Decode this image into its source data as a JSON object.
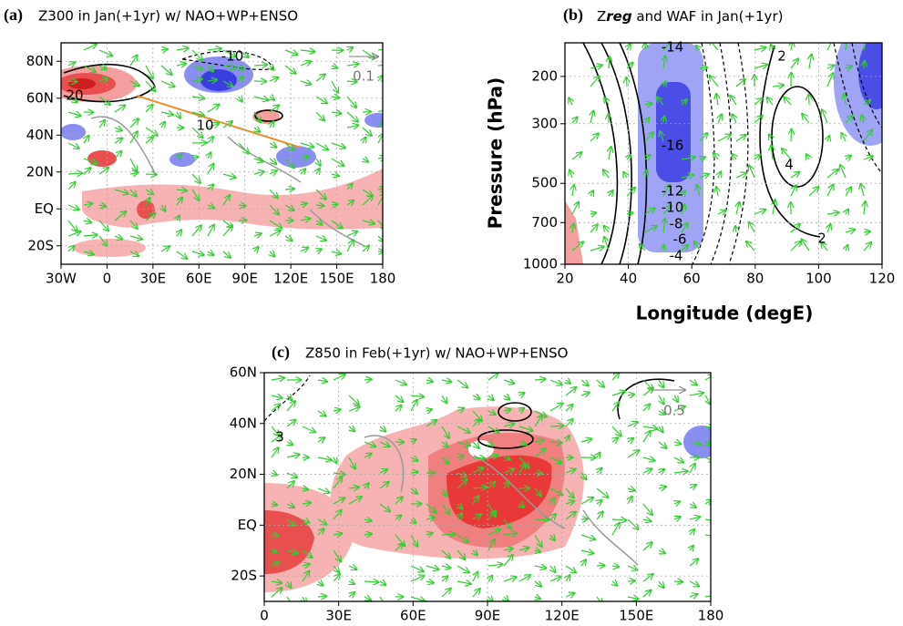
{
  "chart_data": [
    {
      "type": "map",
      "label": "(a)",
      "title": "Z300 in Jan(+1yr) w/ NAO+WP+ENSO",
      "xlim": [
        -30,
        180
      ],
      "xticks": [
        {
          "value": -30,
          "label": "30W"
        },
        0,
        {
          "value": 30,
          "label": "30E"
        },
        {
          "value": 60,
          "label": "60E"
        },
        {
          "value": 90,
          "label": "90E"
        },
        {
          "value": 120,
          "label": "120E"
        },
        {
          "value": 150,
          "label": "150E"
        },
        180
      ],
      "ylim": [
        -30,
        90
      ],
      "yticks": [
        {
          "value": -20,
          "label": "20S"
        },
        {
          "value": 0,
          "label": "EQ"
        },
        {
          "value": 20,
          "label": "20N"
        },
        {
          "value": 40,
          "label": "40N"
        },
        {
          "value": 60,
          "label": "60N"
        },
        {
          "value": 80,
          "label": "80N"
        }
      ],
      "grid": true,
      "annotations": [
        "-10",
        "20",
        "10"
      ],
      "reference_vector": "0.1"
    },
    {
      "type": "contour",
      "label": "(b)",
      "title_parts": [
        "Z",
        "reg",
        "and WAF in Jan(+1yr)"
      ],
      "xlabel": "Longitude (degE)",
      "ylabel": "Pressure (hPa)",
      "xlim": [
        20,
        120
      ],
      "xticks": [
        20,
        40,
        60,
        80,
        100,
        120
      ],
      "ylim": [
        1000,
        150
      ],
      "yticks": [
        200,
        300,
        500,
        700,
        1000
      ],
      "log_y": true,
      "grid": true,
      "annotations": [
        "-14",
        "-16",
        "-12",
        "-10",
        "-8",
        "-6",
        "-4",
        "2",
        "4",
        "2"
      ]
    },
    {
      "type": "map",
      "label": "(c)",
      "title": "Z850 in Feb(+1yr) w/ NAO+WP+ENSO",
      "xlim": [
        0,
        180
      ],
      "xticks": [
        0,
        {
          "value": 30,
          "label": "30E"
        },
        {
          "value": 60,
          "label": "60E"
        },
        {
          "value": 90,
          "label": "90E"
        },
        {
          "value": 120,
          "label": "120E"
        },
        {
          "value": 150,
          "label": "150E"
        },
        180
      ],
      "ylim": [
        -30,
        60
      ],
      "yticks": [
        {
          "value": -20,
          "label": "20S"
        },
        {
          "value": 0,
          "label": "EQ"
        },
        {
          "value": 20,
          "label": "20N"
        },
        {
          "value": 40,
          "label": "40N"
        },
        {
          "value": 60,
          "label": "60N"
        }
      ],
      "grid": true,
      "annotations": [
        "3"
      ],
      "reference_vector": "0.5"
    }
  ]
}
